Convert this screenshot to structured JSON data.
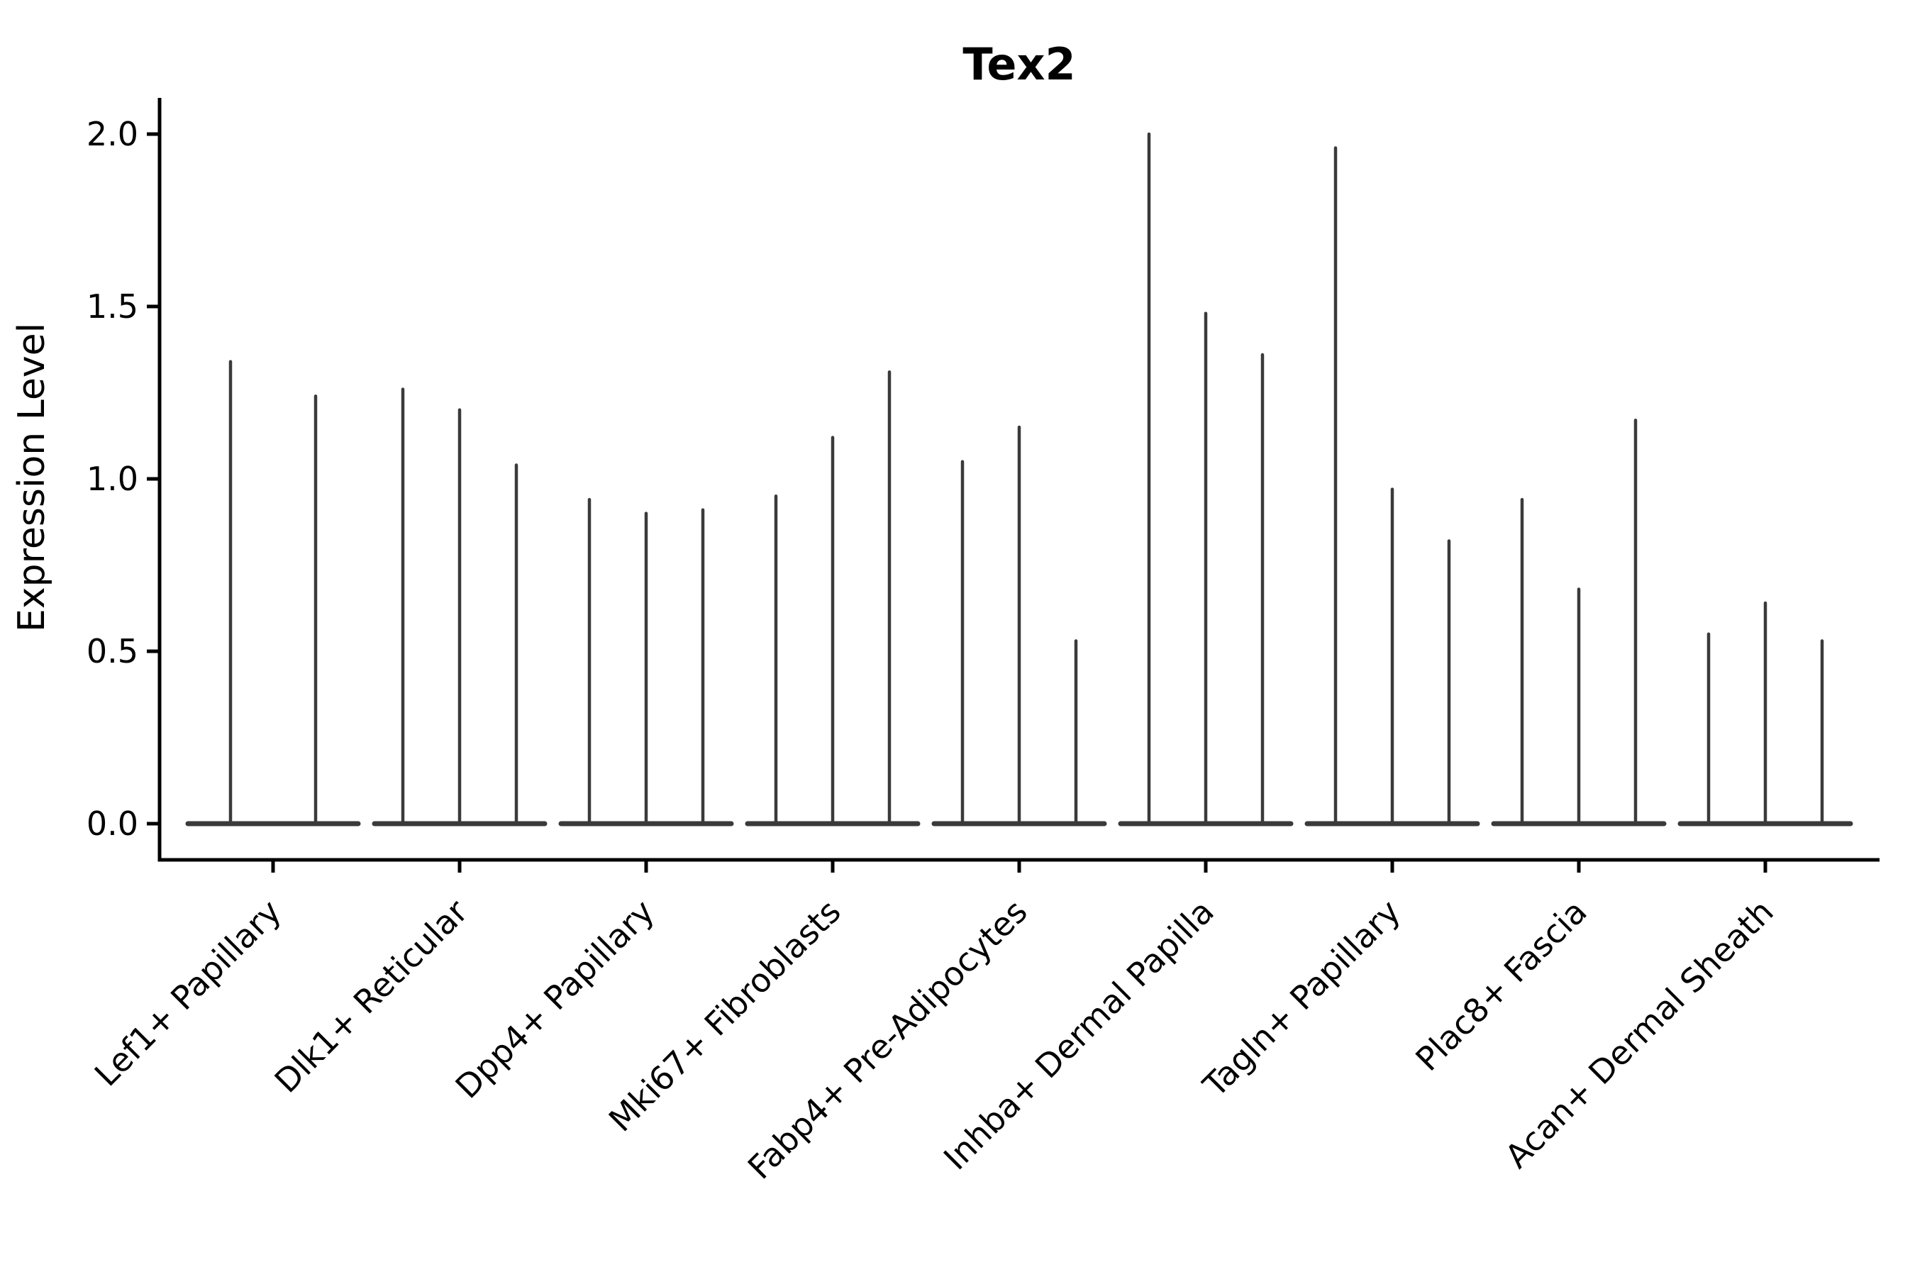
{
  "page": {
    "background_color": "#ffffff"
  },
  "chart_data": {
    "type": "violin",
    "title": "Tex2",
    "xlabel": "",
    "ylabel": "Expression Level",
    "yticks": [
      0.0,
      0.5,
      1.0,
      1.5,
      2.0
    ],
    "ytick_labels": [
      "0.0",
      "0.5",
      "1.0",
      "1.5",
      "2.0"
    ],
    "ylim": [
      -0.105,
      2.105
    ],
    "grid": false,
    "legend": null,
    "categories": [
      "Lef1+ Papillary",
      "Dlk1+ Reticular",
      "Dpp4+ Papillary",
      "Mki67+ Fibroblasts",
      "Fabp4+ Pre-Adipocytes",
      "Inhba+ Dermal Papilla",
      "Tagln+ Papillary",
      "Plac8+ Fascia",
      "Acan+ Dermal Sheath"
    ],
    "series": [
      {
        "category": "Lef1+ Papillary",
        "violin_maxima": [
          1.34,
          1.24
        ]
      },
      {
        "category": "Dlk1+ Reticular",
        "violin_maxima": [
          1.26,
          1.2,
          1.04
        ]
      },
      {
        "category": "Dpp4+ Papillary",
        "violin_maxima": [
          0.94,
          0.9,
          0.91
        ]
      },
      {
        "category": "Mki67+ Fibroblasts",
        "violin_maxima": [
          0.95,
          1.12,
          1.31
        ]
      },
      {
        "category": "Fabp4+ Pre-Adipocytes",
        "violin_maxima": [
          1.05,
          1.15,
          0.53
        ]
      },
      {
        "category": "Inhba+ Dermal Papilla",
        "violin_maxima": [
          2.0,
          1.48,
          1.36
        ]
      },
      {
        "category": "Tagln+ Papillary",
        "violin_maxima": [
          1.96,
          0.97,
          0.82
        ]
      },
      {
        "category": "Plac8+ Fascia",
        "violin_maxima": [
          0.94,
          0.68,
          1.17
        ]
      },
      {
        "category": "Acan+ Dermal Sheath",
        "violin_maxima": [
          0.55,
          0.64,
          0.53
        ]
      }
    ],
    "description": "Each violin collapses to a flat base at expression 0 with a thin spike up to its maximum expression value.",
    "style": {
      "violin_color": "#3a3a3a",
      "axis_color": "#000000",
      "text_color": "#000000",
      "background": "#ffffff"
    },
    "layout_hints": {
      "x_tick_label_rotation_deg": 45,
      "spines_visible": [
        "left",
        "bottom"
      ],
      "legend_position": "none"
    }
  }
}
